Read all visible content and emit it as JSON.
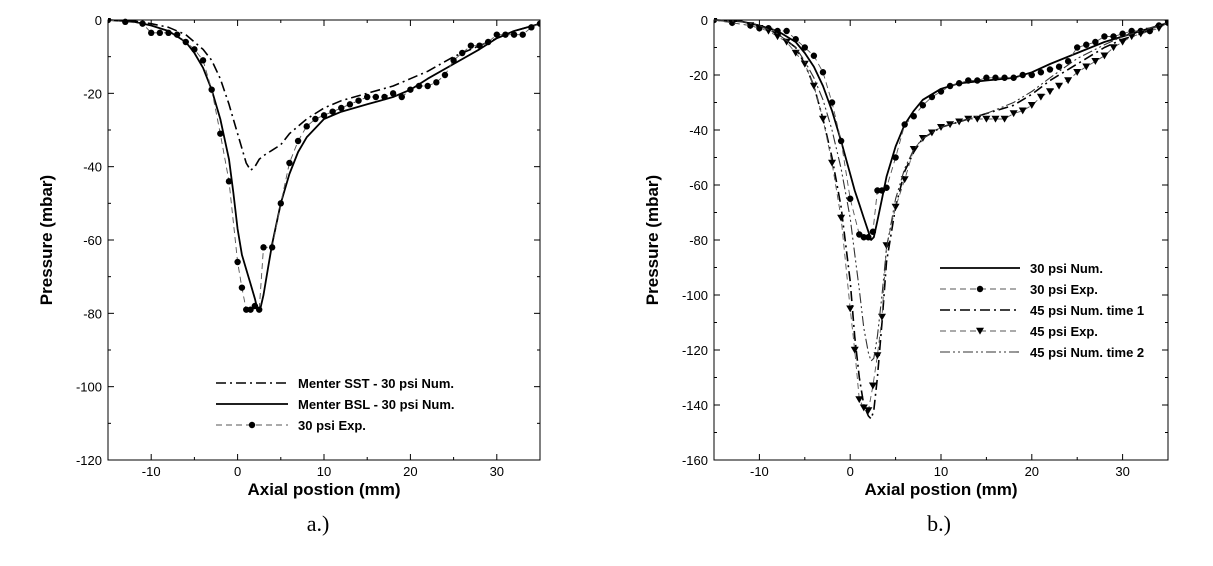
{
  "chart_data": [
    {
      "type": "line",
      "caption": "a.)",
      "xlabel": "Axial postion (mm)",
      "ylabel": "Pressure (mbar)",
      "xlim": [
        -15,
        35
      ],
      "ylim": [
        -120,
        0
      ],
      "xticks": [
        -10,
        0,
        10,
        20,
        30
      ],
      "yticks": [
        0,
        -20,
        -40,
        -60,
        -80,
        -100,
        -120
      ],
      "legend": "bottom-right",
      "series": [
        {
          "name": "Menter SST - 30 psi Num.",
          "style": "dashdot",
          "x": [
            -15,
            -12,
            -10,
            -8,
            -6,
            -4,
            -3,
            -2,
            -1,
            0,
            0.5,
            1,
            1.5,
            2,
            2.5,
            3,
            4,
            5,
            6,
            8,
            10,
            12,
            15,
            18,
            20,
            22,
            25,
            28,
            30,
            32,
            35
          ],
          "y": [
            0,
            -0.3,
            -1,
            -2,
            -4,
            -8,
            -11,
            -16,
            -23,
            -31,
            -35,
            -39,
            -41,
            -40,
            -38,
            -37,
            -35.5,
            -34,
            -31,
            -27,
            -24,
            -22,
            -20,
            -18,
            -16,
            -14,
            -10,
            -7,
            -5,
            -3,
            -1
          ]
        },
        {
          "name": "Menter BSL - 30 psi Num.",
          "style": "solid",
          "x": [
            -15,
            -12,
            -10,
            -8,
            -6,
            -5,
            -4,
            -3,
            -2,
            -1,
            -0.5,
            0,
            0.5,
            1,
            1.5,
            2,
            2.3,
            2.6,
            3,
            3.5,
            4,
            5,
            6,
            7,
            8,
            10,
            12,
            15,
            18,
            20,
            22,
            25,
            28,
            30,
            32,
            35
          ],
          "y": [
            0,
            -0.5,
            -1.5,
            -3,
            -6,
            -9,
            -13,
            -19,
            -27,
            -38,
            -47,
            -57,
            -64,
            -68,
            -72,
            -76,
            -79,
            -79,
            -75,
            -68,
            -61,
            -50,
            -42,
            -36,
            -32,
            -27,
            -25,
            -23,
            -21,
            -19,
            -16,
            -12,
            -8,
            -5,
            -3,
            -1
          ]
        },
        {
          "name": "30 psi Exp.",
          "style": "dashed-circle",
          "x": [
            -15,
            -13,
            -11,
            -10,
            -9,
            -8,
            -7,
            -6,
            -5,
            -4,
            -3,
            -2,
            -1,
            0,
            0.5,
            1,
            1.5,
            2,
            2.5,
            3,
            4,
            5,
            6,
            7,
            8,
            9,
            10,
            11,
            12,
            13,
            14,
            15,
            16,
            17,
            18,
            19,
            20,
            21,
            22,
            23,
            24,
            25,
            26,
            27,
            28,
            29,
            30,
            31,
            32,
            33,
            34,
            35
          ],
          "y": [
            0,
            -0.5,
            -1,
            -3.5,
            -3.5,
            -3.5,
            -4,
            -6,
            -8,
            -11,
            -19,
            -31,
            -44,
            -66,
            -73,
            -79,
            -79,
            -78,
            -79,
            -62,
            -62,
            -50,
            -39,
            -33,
            -29,
            -27,
            -26,
            -25,
            -24,
            -23,
            -22,
            -21,
            -21,
            -21,
            -20,
            -21,
            -19,
            -18,
            -18,
            -17,
            -15,
            -11,
            -9,
            -7,
            -7,
            -6,
            -4,
            -4,
            -4,
            -4,
            -2,
            -1
          ]
        }
      ]
    },
    {
      "type": "line",
      "caption": "b.)",
      "xlabel": "Axial postion (mm)",
      "ylabel": "Pressure (mbar)",
      "xlim": [
        -15,
        35
      ],
      "ylim": [
        -160,
        0
      ],
      "xticks": [
        -10,
        0,
        10,
        20,
        30
      ],
      "yticks": [
        0,
        -20,
        -40,
        -60,
        -80,
        -100,
        -120,
        -140,
        -160
      ],
      "legend": "right",
      "series": [
        {
          "name": "30 psi Num.",
          "style": "solid",
          "x": [
            -15,
            -12,
            -10,
            -8,
            -6,
            -5,
            -4,
            -3,
            -2,
            -1,
            0,
            0.5,
            1,
            1.5,
            2,
            2.3,
            2.6,
            3,
            3.5,
            4,
            5,
            6,
            7,
            8,
            10,
            12,
            15,
            18,
            20,
            22,
            25,
            28,
            30,
            32,
            35
          ],
          "y": [
            0,
            -0.5,
            -2,
            -4,
            -8,
            -12,
            -17,
            -24,
            -33,
            -44,
            -56,
            -62,
            -67,
            -72,
            -77,
            -80,
            -79,
            -73,
            -65,
            -57,
            -46,
            -38,
            -33,
            -29,
            -25,
            -23,
            -22,
            -21,
            -19,
            -16,
            -12,
            -8,
            -6,
            -4,
            -1
          ]
        },
        {
          "name": "30 psi Exp.",
          "style": "dashed-circle",
          "x": [
            -15,
            -13,
            -11,
            -10,
            -9,
            -8,
            -7,
            -6,
            -5,
            -4,
            -3,
            -2,
            -1,
            0,
            1,
            1.5,
            2,
            2.5,
            3,
            3.5,
            4,
            5,
            6,
            7,
            8,
            9,
            10,
            11,
            12,
            13,
            14,
            15,
            16,
            17,
            18,
            19,
            20,
            21,
            22,
            23,
            24,
            25,
            26,
            27,
            28,
            29,
            30,
            31,
            32,
            33,
            34,
            35
          ],
          "y": [
            0,
            -1,
            -2,
            -3,
            -3,
            -4,
            -4,
            -7,
            -10,
            -13,
            -19,
            -30,
            -44,
            -65,
            -78,
            -79,
            -79,
            -77,
            -62,
            -62,
            -61,
            -50,
            -38,
            -35,
            -31,
            -28,
            -26,
            -24,
            -23,
            -22,
            -22,
            -21,
            -21,
            -21,
            -21,
            -20,
            -20,
            -19,
            -18,
            -17,
            -15,
            -10,
            -9,
            -8,
            -6,
            -6,
            -5,
            -4,
            -4,
            -4,
            -2,
            -1
          ]
        },
        {
          "name": "45 psi Num. time 1",
          "style": "dashdot",
          "x": [
            -15,
            -12,
            -10,
            -8,
            -6,
            -5,
            -4,
            -3,
            -2,
            -1,
            0,
            0.5,
            1,
            1.5,
            2,
            2.3,
            2.6,
            3,
            3.5,
            4,
            5,
            6,
            7,
            8,
            10,
            12,
            15,
            18,
            20,
            22,
            25,
            28,
            30,
            32,
            35
          ],
          "y": [
            0,
            -0.5,
            -2,
            -5,
            -10,
            -16,
            -24,
            -36,
            -50,
            -68,
            -95,
            -115,
            -130,
            -140,
            -144,
            -145,
            -142,
            -130,
            -110,
            -88,
            -68,
            -55,
            -48,
            -43,
            -39,
            -37,
            -34,
            -31,
            -27,
            -22,
            -16,
            -10,
            -7,
            -5,
            -1
          ]
        },
        {
          "name": "45 psi Exp.",
          "style": "dashed-triangle",
          "x": [
            -15,
            -13,
            -11,
            -10,
            -9,
            -8,
            -7,
            -6,
            -5,
            -4,
            -3,
            -2,
            -1,
            0,
            0.5,
            1,
            1.5,
            2,
            2.5,
            3,
            3.5,
            4,
            5,
            6,
            7,
            8,
            9,
            10,
            11,
            12,
            13,
            14,
            15,
            16,
            17,
            18,
            19,
            20,
            21,
            22,
            23,
            24,
            25,
            26,
            27,
            28,
            29,
            30,
            31,
            32,
            33,
            34,
            35
          ],
          "y": [
            0,
            -1,
            -2,
            -3,
            -4,
            -6,
            -8,
            -12,
            -16,
            -24,
            -36,
            -52,
            -72,
            -105,
            -120,
            -138,
            -141,
            -142,
            -133,
            -122,
            -108,
            -82,
            -68,
            -58,
            -47,
            -43,
            -41,
            -39,
            -38,
            -37,
            -36,
            -36,
            -36,
            -36,
            -36,
            -34,
            -33,
            -31,
            -28,
            -26,
            -24,
            -22,
            -19,
            -17,
            -15,
            -13,
            -10,
            -8,
            -6,
            -5,
            -4,
            -3,
            -1
          ]
        },
        {
          "name": "45 psi Num. time 2",
          "style": "dashdotdot",
          "x": [
            -15,
            -12,
            -10,
            -8,
            -6,
            -5,
            -4,
            -3,
            -2,
            -1,
            0,
            0.5,
            1,
            1.5,
            2,
            2.3,
            2.6,
            3,
            3.5,
            4,
            5,
            6,
            7,
            8,
            10,
            12,
            15,
            18,
            20,
            22,
            25,
            28,
            30,
            32,
            35
          ],
          "y": [
            0,
            -0.5,
            -2,
            -5,
            -10,
            -15,
            -21,
            -29,
            -40,
            -54,
            -72,
            -85,
            -98,
            -112,
            -121,
            -124,
            -123,
            -115,
            -100,
            -83,
            -65,
            -54,
            -47,
            -43,
            -39,
            -37,
            -34,
            -30,
            -26,
            -21,
            -14,
            -9,
            -6,
            -4,
            -1
          ]
        }
      ]
    }
  ]
}
